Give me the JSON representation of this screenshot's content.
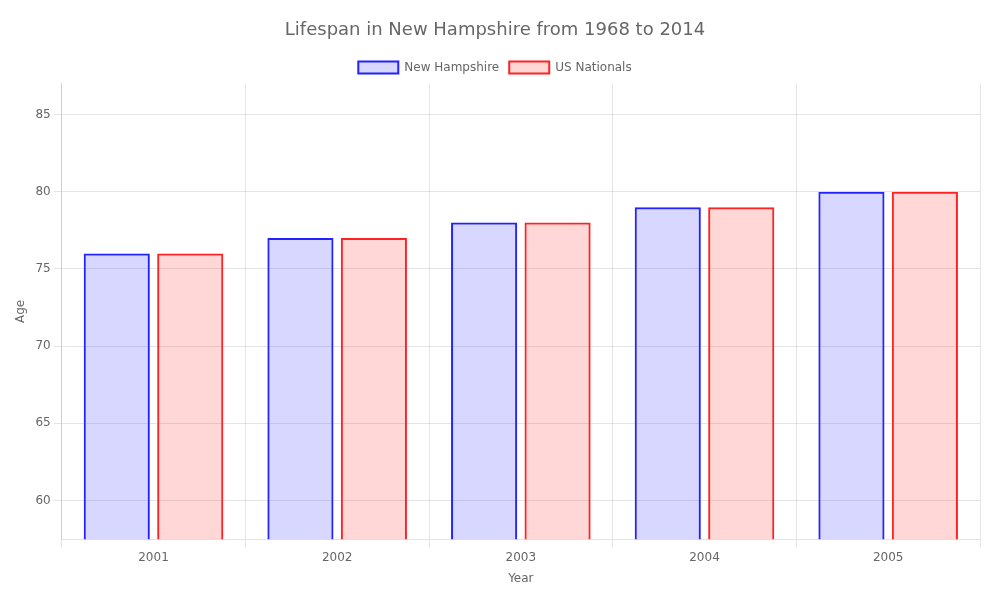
{
  "chart_data": {
    "type": "bar",
    "title": "Lifespan in New Hampshire from 1968 to 2014",
    "x_label": "Year",
    "y_label": "Age",
    "categories": [
      "2001",
      "2002",
      "2003",
      "2004",
      "2005"
    ],
    "series": [
      {
        "name": "New Hampshire",
        "color": "#2222ff",
        "values": [
          76,
          77,
          78,
          79,
          80
        ]
      },
      {
        "name": "US Nationals",
        "color": "#ff2222",
        "values": [
          76,
          77,
          78,
          79,
          80
        ]
      }
    ],
    "ylim": [
      57.5,
      87
    ],
    "yticks": [
      60,
      65,
      70,
      75,
      80,
      85
    ],
    "grid": true,
    "legend": "top"
  }
}
